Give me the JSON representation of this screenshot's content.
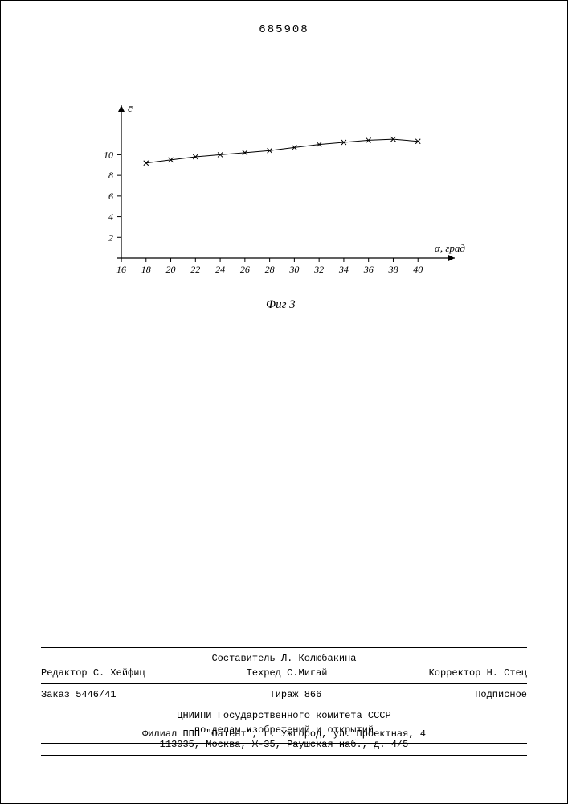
{
  "doc_number": "685908",
  "chart": {
    "type": "line",
    "y_label": "c̄",
    "x_label": "α, град",
    "fig_caption": "Фиг 3",
    "x_values": [
      18,
      20,
      22,
      24,
      26,
      28,
      30,
      32,
      34,
      36,
      38,
      40
    ],
    "y_values": [
      9.2,
      9.5,
      9.8,
      10.0,
      10.2,
      10.4,
      10.7,
      11.0,
      11.2,
      11.4,
      11.5,
      11.3
    ],
    "x_ticks": [
      16,
      18,
      20,
      22,
      24,
      26,
      28,
      30,
      32,
      34,
      36,
      38,
      40
    ],
    "y_ticks": [
      2,
      4,
      6,
      8,
      10
    ],
    "xlim": [
      16,
      42
    ],
    "ylim": [
      0,
      14
    ],
    "marker": "x",
    "marker_size": 6,
    "line_color": "#000000",
    "background_color": "#ffffff",
    "axis_color": "#000000",
    "tick_fontsize": 12,
    "label_fontsize": 13
  },
  "footer": {
    "compiler_label": "Составитель",
    "compiler_name": "Л. Колюбакина",
    "editor_label": "Редактор",
    "editor_name": "С. Хейфиц",
    "techred_label": "Техред",
    "techred_name": "С.Мигай",
    "corrector_label": "Корректор",
    "corrector_name": "Н. Стец",
    "order": "Заказ 5446/41",
    "circulation": "Тираж 866",
    "subscription": "Подписное",
    "org_line1": "ЦНИИПИ Государственного комитета СССР",
    "org_line2": "по делам изобретений и открытий",
    "address": "113035, Москва, Ж-35, Раушская наб., д. 4/5",
    "branch": "Филиал ППП \"Патент\", г. Ужгород, ул. Проектная, 4"
  }
}
